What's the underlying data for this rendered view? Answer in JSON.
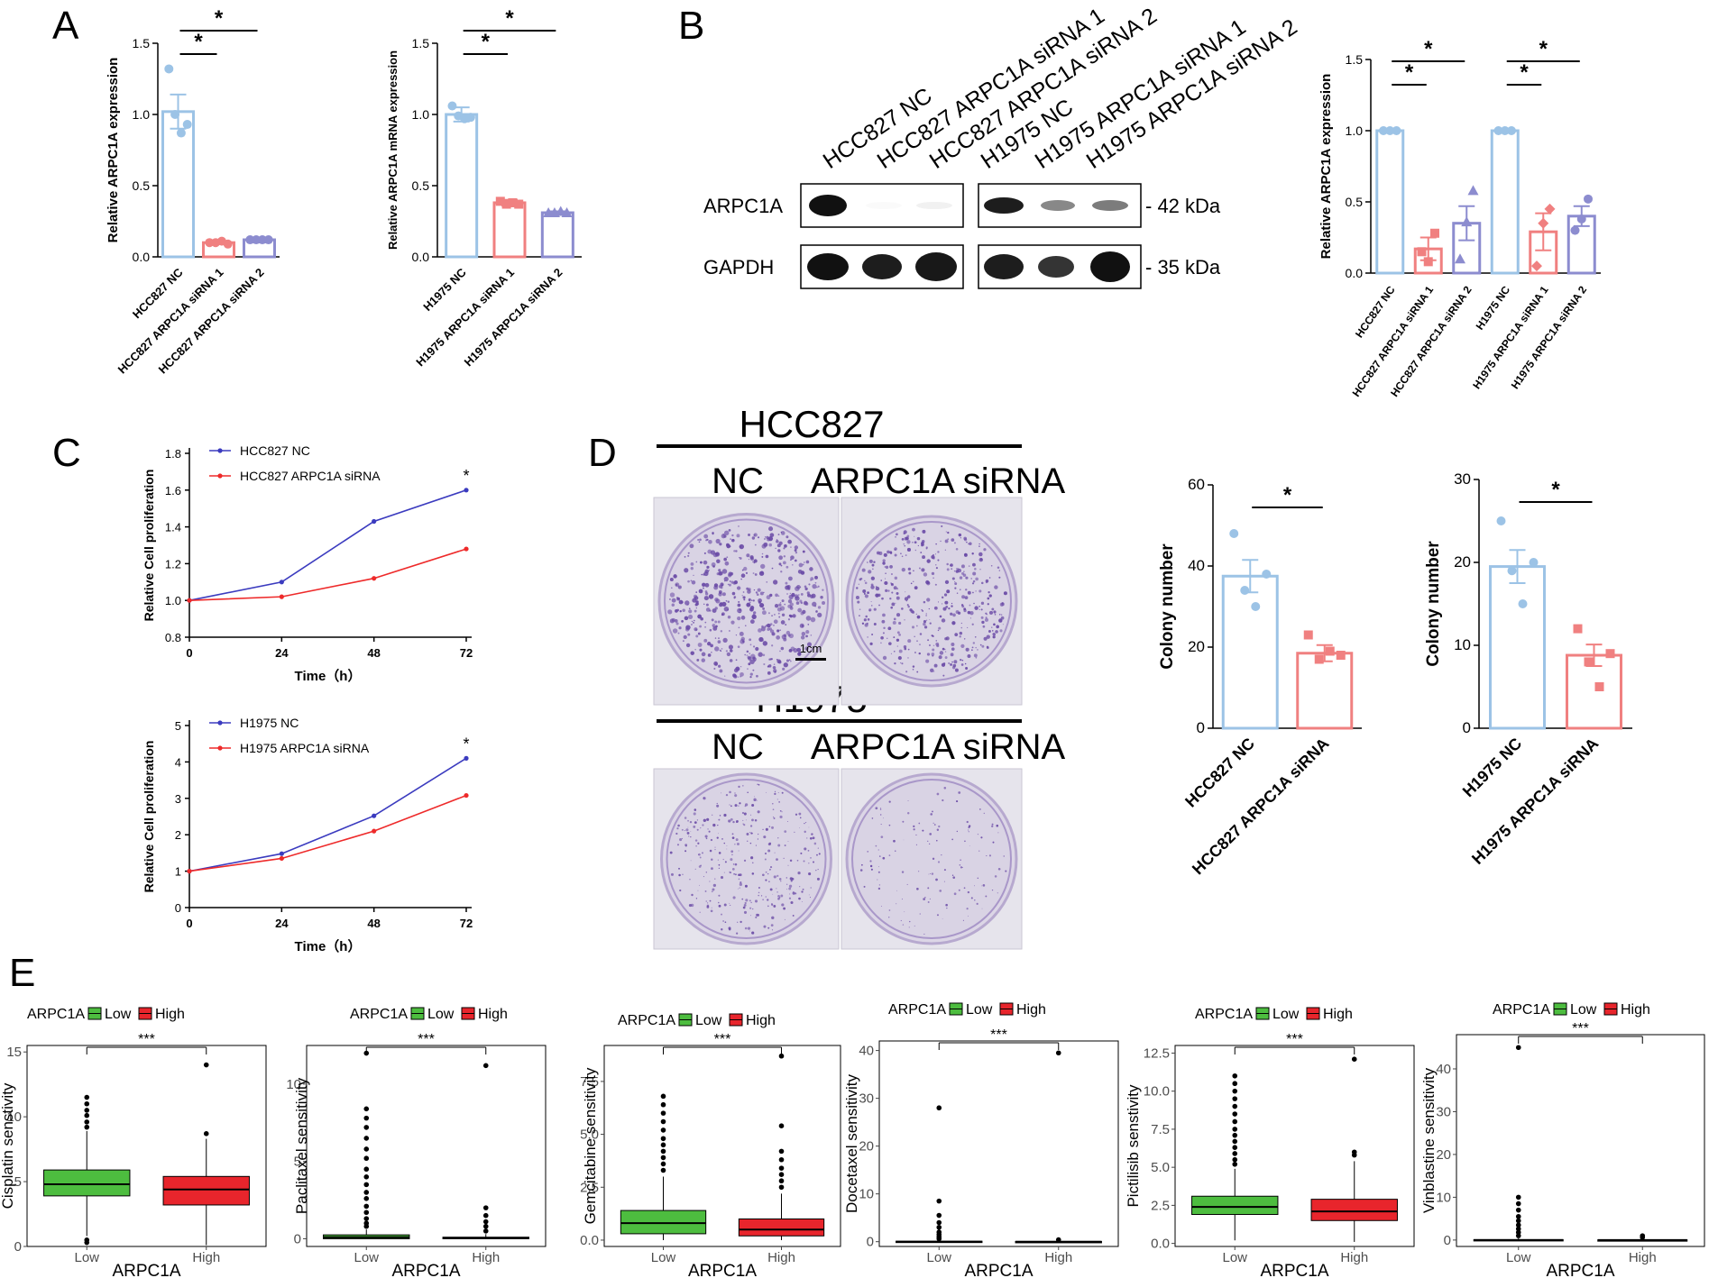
{
  "panel_labels": [
    "A",
    "B",
    "C",
    "D",
    "E"
  ],
  "colors": {
    "blue": "#9cc3e6",
    "red": "#f08080",
    "purple": "#8c8ccf",
    "nc_line": "#3b3bbf",
    "si_line": "#ee2a2a",
    "box_low": "#4dbd3f",
    "box_high": "#e8252c"
  },
  "blot": {
    "lanes": [
      "HCC827 NC",
      "HCC827 ARPC1A siRNA 1",
      "HCC827 ARPC1A siRNA 2",
      "H1975 NC",
      "H1975 ARPC1A siRNA 1",
      "H1975 ARPC1A siRNA 2"
    ],
    "rows": [
      {
        "name": "ARPC1A",
        "kda": "- 42 kDa"
      },
      {
        "name": "GAPDH",
        "kda": "- 35 kDa"
      }
    ]
  },
  "plates": {
    "hcc_title": "HCC827",
    "h1975_title": "H1975",
    "nc_label": "NC",
    "si_label": "ARPC1A siRNA",
    "scale_bar": "1cm"
  },
  "chart_data": [
    {
      "id": "A1",
      "type": "bar",
      "ylabel": "Relative ARPC1A expression",
      "ylim": [
        0,
        1.5
      ],
      "yticks": [
        "0.0",
        "0.5",
        "1.0",
        "1.5"
      ],
      "categories": [
        "HCC827 NC",
        "HCC827 ARPC1A siRNA 1",
        "HCC827 ARPC1A siRNA 2"
      ],
      "values": [
        1.02,
        0.1,
        0.12
      ],
      "errors": [
        0.12,
        0.01,
        0.01
      ],
      "points": [
        [
          1.32,
          1.0,
          0.87,
          0.93
        ],
        [
          0.1,
          0.1,
          0.11,
          0.09
        ],
        [
          0.12,
          0.12,
          0.12,
          0.12
        ]
      ],
      "significance": [
        {
          "from": 0,
          "to": 1,
          "label": "*"
        },
        {
          "from": 0,
          "to": 2,
          "label": "*"
        }
      ]
    },
    {
      "id": "A2",
      "type": "bar",
      "ylabel": "Relative ARPC1A mRNA expression",
      "ylim": [
        0,
        1.5
      ],
      "yticks": [
        "0.0",
        "0.5",
        "1.0",
        "1.5"
      ],
      "categories": [
        "H1975 NC",
        "H1975 ARPC1A siRNA 1",
        "H1975 ARPC1A siRNA 2"
      ],
      "values": [
        1.0,
        0.38,
        0.31
      ],
      "errors": [
        0.05,
        0.02,
        0.01
      ],
      "points": [
        [
          1.06,
          0.99,
          0.97,
          0.98
        ],
        [
          0.39,
          0.37,
          0.38,
          0.37
        ],
        [
          0.31,
          0.31,
          0.32,
          0.31
        ]
      ],
      "significance": [
        {
          "from": 0,
          "to": 1,
          "label": "*"
        },
        {
          "from": 0,
          "to": 2,
          "label": "*"
        }
      ]
    },
    {
      "id": "B",
      "type": "bar",
      "ylabel": "Relative ARPC1A  expression",
      "ylim": [
        0,
        1.5
      ],
      "yticks": [
        "0.0",
        "0.5",
        "1.0",
        "1.5"
      ],
      "categories": [
        "HCC827 NC",
        "HCC827 ARPC1A siRNA 1",
        "HCC827 ARPC1A siRNA 2",
        "H1975 NC",
        "H1975 ARPC1A siRNA 1",
        "H1975 ARPC1A siRNA 2"
      ],
      "values": [
        1.0,
        0.17,
        0.35,
        1.0,
        0.29,
        0.4
      ],
      "errors": [
        0.0,
        0.08,
        0.12,
        0.0,
        0.13,
        0.07
      ],
      "points": [
        [
          1.0,
          1.0,
          1.0
        ],
        [
          0.15,
          0.08,
          0.28
        ],
        [
          0.1,
          0.36,
          0.58
        ],
        [
          1.0,
          1.0,
          1.0
        ],
        [
          0.05,
          0.35,
          0.45
        ],
        [
          0.3,
          0.38,
          0.52
        ]
      ],
      "significance": [
        {
          "from": 0,
          "to": 1,
          "label": "*"
        },
        {
          "from": 0,
          "to": 2,
          "label": "*"
        },
        {
          "from": 3,
          "to": 4,
          "label": "*"
        },
        {
          "from": 3,
          "to": 5,
          "label": "*"
        }
      ]
    },
    {
      "id": "C1",
      "type": "line",
      "xlabel": "Time（h）",
      "ylabel": "Relative Cell proliferation",
      "x": [
        0,
        24,
        48,
        72
      ],
      "ylim": [
        0.8,
        1.8
      ],
      "yticks": [
        "0.8",
        "1.0",
        "1.2",
        "1.4",
        "1.6",
        "1.8"
      ],
      "xticks": [
        "0",
        "24",
        "48",
        "72"
      ],
      "series": [
        {
          "name": "HCC827 NC",
          "values": [
            1.0,
            1.1,
            1.43,
            1.6
          ]
        },
        {
          "name": "HCC827 ARPC1A siRNA",
          "values": [
            1.0,
            1.02,
            1.12,
            1.28
          ]
        }
      ],
      "annotation": "*"
    },
    {
      "id": "C2",
      "type": "line",
      "xlabel": "Time（h）",
      "ylabel": "Relative Cell proliferation",
      "x": [
        0,
        24,
        48,
        72
      ],
      "ylim": [
        0,
        5
      ],
      "yticks": [
        "0",
        "1",
        "2",
        "3",
        "4",
        "5"
      ],
      "xticks": [
        "0",
        "24",
        "48",
        "72"
      ],
      "series": [
        {
          "name": "H1975 NC",
          "values": [
            1.0,
            1.48,
            2.52,
            4.1
          ]
        },
        {
          "name": "H1975 ARPC1A siRNA",
          "values": [
            1.0,
            1.35,
            2.1,
            3.08
          ]
        }
      ],
      "annotation": "*"
    },
    {
      "id": "D1",
      "type": "bar",
      "ylabel": "Colony number",
      "ylim": [
        0,
        60
      ],
      "yticks": [
        "0",
        "20",
        "40",
        "60"
      ],
      "categories": [
        "HCC827 NC",
        "HCC827 ARPC1A siRNA"
      ],
      "values": [
        37.5,
        18.5
      ],
      "errors": [
        4,
        2
      ],
      "points": [
        [
          48,
          34,
          30,
          38
        ],
        [
          23,
          17,
          19,
          18
        ]
      ],
      "significance": [
        {
          "from": 0,
          "to": 1,
          "label": "*"
        }
      ]
    },
    {
      "id": "D2",
      "type": "bar",
      "ylabel": "Colony number",
      "ylim": [
        0,
        30
      ],
      "yticks": [
        "0",
        "10",
        "20",
        "30"
      ],
      "categories": [
        "H1975 NC",
        "H1975 ARPC1A siRNA"
      ],
      "values": [
        19.5,
        8.8
      ],
      "errors": [
        2,
        1.3
      ],
      "points": [
        [
          25,
          19,
          15,
          20
        ],
        [
          12,
          8,
          5,
          9
        ]
      ],
      "significance": [
        {
          "from": 0,
          "to": 1,
          "label": "*"
        }
      ]
    },
    {
      "id": "E1",
      "type": "box",
      "ylabel": "Cisplatin senstivity",
      "xlabel": "ARPC1A",
      "legend_title": "ARPC1A",
      "categories": [
        "Low",
        "High"
      ],
      "ylim": [
        0,
        15.5
      ],
      "yticks": [
        "0",
        "5",
        "10",
        "15"
      ],
      "boxes": [
        {
          "q1": 3.9,
          "med": 4.8,
          "q3": 5.9,
          "lo": 0.8,
          "hi": 8.9,
          "out": [
            9.2,
            9.6,
            10.1,
            10.5,
            11,
            11.5,
            0.5,
            0.3
          ]
        },
        {
          "q1": 3.2,
          "med": 4.4,
          "q3": 5.4,
          "lo": 0.1,
          "hi": 8.3,
          "out": [
            8.7,
            14
          ]
        }
      ],
      "significance": "***"
    },
    {
      "id": "E2",
      "type": "box",
      "ylabel": "Paclitaxel sensitivity",
      "xlabel": "ARPC1A",
      "legend_title": "ARPC1A",
      "categories": [
        "Low",
        "High"
      ],
      "ylim": [
        -0.5,
        12.5
      ],
      "yticks": [
        "0",
        "5",
        "10"
      ],
      "boxes": [
        {
          "q1": 0.0,
          "med": 0.1,
          "q3": 0.25,
          "lo": 0,
          "hi": 0.6,
          "out": [
            0.8,
            1.0,
            1.3,
            1.7,
            2.1,
            2.6,
            3.0,
            3.5,
            4.0,
            4.5,
            5.2,
            5.8,
            6.5,
            7.2,
            7.8,
            8.4,
            12
          ]
        },
        {
          "q1": 0.0,
          "med": 0.05,
          "q3": 0.1,
          "lo": 0,
          "hi": 0.3,
          "out": [
            0.5,
            0.8,
            1.1,
            1.5,
            2.0,
            11.2
          ]
        }
      ],
      "significance": "***"
    },
    {
      "id": "E3",
      "type": "box",
      "ylabel": "Gemcitabine sensitivity",
      "xlabel": "ARPC1A",
      "legend_title": "ARPC1A",
      "categories": [
        "Low",
        "High"
      ],
      "ylim": [
        -0.3,
        9.2
      ],
      "yticks": [
        "0.0",
        "2.5",
        "5.0",
        "7.5"
      ],
      "boxes": [
        {
          "q1": 0.3,
          "med": 0.8,
          "q3": 1.4,
          "lo": 0,
          "hi": 3.0,
          "out": [
            3.3,
            3.6,
            3.9,
            4.2,
            4.5,
            4.8,
            5.2,
            5.6,
            6.0,
            6.4,
            6.8
          ]
        },
        {
          "q1": 0.2,
          "med": 0.5,
          "q3": 1.0,
          "lo": 0,
          "hi": 2.2,
          "out": [
            2.5,
            2.8,
            3.1,
            3.4,
            3.8,
            4.2,
            5.4,
            8.7
          ]
        }
      ],
      "significance": "***"
    },
    {
      "id": "E4",
      "type": "box",
      "ylabel": "Docetaxel sensitivity",
      "xlabel": "ARPC1A",
      "legend_title": "ARPC1A",
      "categories": [
        "Low",
        "High"
      ],
      "ylim": [
        -1,
        42
      ],
      "yticks": [
        "0",
        "10",
        "20",
        "30",
        "40"
      ],
      "boxes": [
        {
          "q1": 0,
          "med": 0,
          "q3": 0.1,
          "lo": 0,
          "hi": 0.3,
          "out": [
            0.6,
            1,
            1.5,
            2,
            3,
            4,
            5.5,
            8.5,
            28
          ]
        },
        {
          "q1": 0,
          "med": 0,
          "q3": 0.05,
          "lo": 0,
          "hi": 0.2,
          "out": [
            0.4,
            39.5
          ]
        }
      ],
      "significance": "***"
    },
    {
      "id": "E5",
      "type": "box",
      "ylabel": "Pictilisib senstivity",
      "xlabel": "ARPC1A",
      "legend_title": "ARPC1A",
      "categories": [
        "Low",
        "High"
      ],
      "ylim": [
        -0.2,
        13
      ],
      "yticks": [
        "0.0",
        "2.5",
        "5.0",
        "7.5",
        "10.0",
        "12.5"
      ],
      "boxes": [
        {
          "q1": 1.9,
          "med": 2.4,
          "q3": 3.1,
          "lo": 0.2,
          "hi": 4.9,
          "out": [
            5.2,
            5.5,
            5.9,
            6.3,
            6.7,
            7.1,
            7.5,
            8.0,
            8.5,
            9.0,
            9.5,
            10.0,
            10.5,
            11.0
          ]
        },
        {
          "q1": 1.5,
          "med": 2.1,
          "q3": 2.9,
          "lo": 0.1,
          "hi": 5.4,
          "out": [
            5.8,
            6.0,
            12.1
          ]
        }
      ],
      "significance": "***"
    },
    {
      "id": "E6",
      "type": "box",
      "ylabel": "Vinblastine sensitivity",
      "xlabel": "ARPC1A",
      "legend_title": "ARPC1A",
      "categories": [
        "Low",
        "High"
      ],
      "ylim": [
        -1.5,
        48
      ],
      "yticks": [
        "0",
        "10",
        "20",
        "30",
        "40"
      ],
      "boxes": [
        {
          "q1": 0,
          "med": 0,
          "q3": 0.1,
          "lo": 0,
          "hi": 0.4,
          "out": [
            1,
            1.8,
            2.6,
            3.5,
            4.5,
            5.5,
            7,
            8.5,
            10,
            45
          ]
        },
        {
          "q1": 0,
          "med": 0,
          "q3": 0.05,
          "lo": 0,
          "hi": 0.3,
          "out": [
            0.6,
            1.0
          ]
        }
      ],
      "significance": "***"
    }
  ],
  "legend_labels": {
    "low": "Low",
    "high": "High"
  }
}
